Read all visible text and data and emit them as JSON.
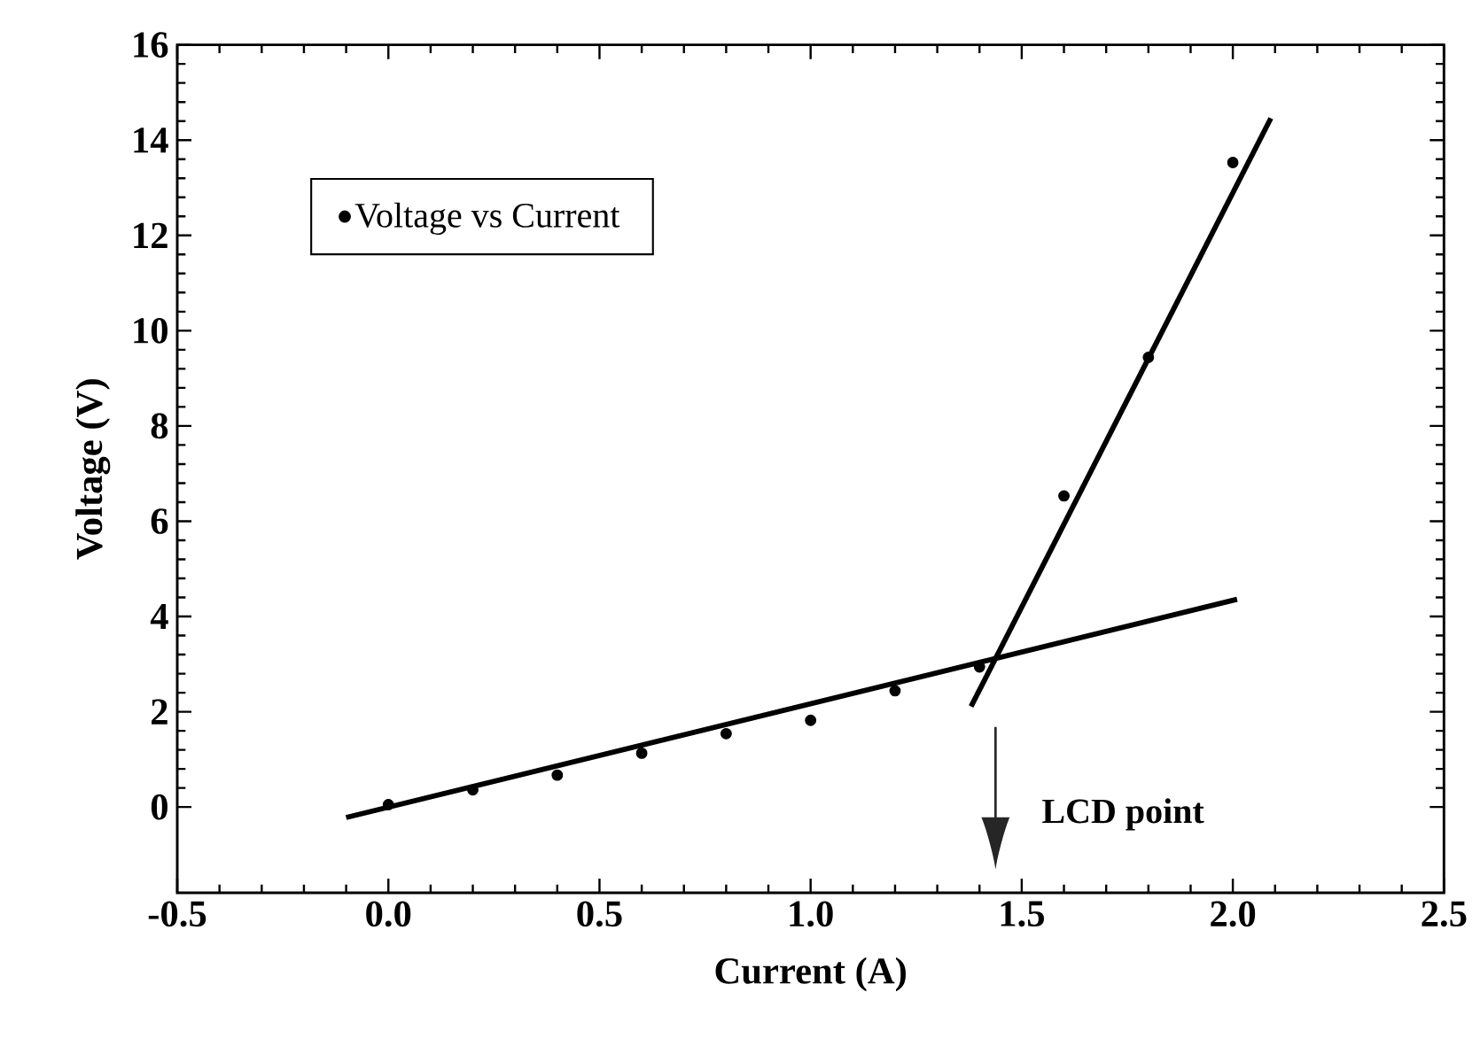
{
  "chart_data": {
    "type": "scatter",
    "xlabel": "Current (A)",
    "ylabel": "Voltage (V)",
    "xlim": [
      -0.5,
      2.5
    ],
    "ylim": [
      -1.8,
      16
    ],
    "xticks": [
      {
        "value": -0.5,
        "label": "-0.5"
      },
      {
        "value": 0,
        "label": "0.0"
      },
      {
        "value": 0.5,
        "label": "0.5"
      },
      {
        "value": 1,
        "label": "1.0"
      },
      {
        "value": 1.5,
        "label": "1.5"
      },
      {
        "value": 2,
        "label": "2.0"
      },
      {
        "value": 2.5,
        "label": "2.5"
      }
    ],
    "yticks": [
      0,
      2,
      4,
      6,
      8,
      10,
      12,
      14,
      16
    ],
    "legend": "top left",
    "grid": false,
    "series": [
      {
        "name": "Voltage vs Current",
        "marker": "circle",
        "color": "#000000",
        "x": [
          0,
          0.2,
          0.4,
          0.6,
          0.8,
          1.0,
          1.2,
          1.4,
          1.6,
          1.8,
          2.0
        ],
        "values": [
          0.05,
          0.36,
          0.67,
          1.13,
          1.54,
          1.82,
          2.44,
          2.94,
          6.53,
          9.44,
          13.53
        ]
      },
      {
        "type": "line",
        "marker": "none",
        "color": "#000000",
        "x": [
          -0.1,
          2.01
        ],
        "values": [
          -0.22,
          4.36
        ]
      },
      {
        "type": "line",
        "marker": "none",
        "color": "#000000",
        "x": [
          1.38,
          2.09
        ],
        "values": [
          2.11,
          14.46
        ]
      }
    ],
    "annotations": [
      "LCD point"
    ]
  }
}
